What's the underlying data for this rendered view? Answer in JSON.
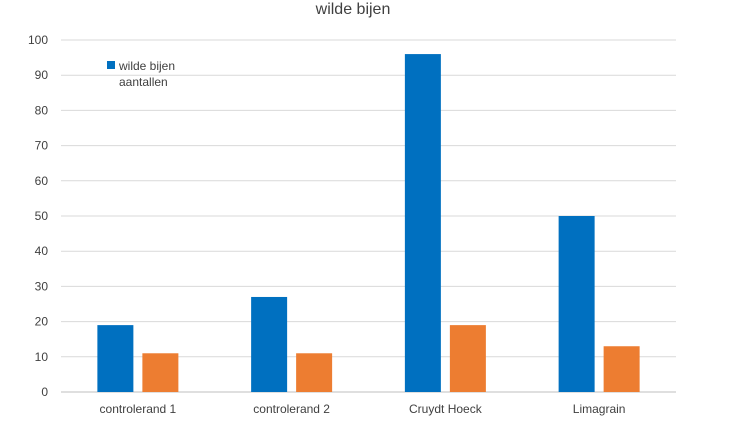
{
  "chart_data": {
    "type": "bar",
    "title": "wilde bijen",
    "categories": [
      "controlerand 1",
      "controlerand 2",
      "Cruydt Hoeck",
      "Limagrain"
    ],
    "series": [
      {
        "name": "wilde bijen aantallen",
        "values": [
          19,
          27,
          96,
          50
        ],
        "color": "#0070C0"
      },
      {
        "values": [
          11,
          11,
          19,
          13
        ],
        "color": "#ED7D31"
      }
    ],
    "yticks": [
      "0",
      "10",
      "20",
      "30",
      "40",
      "50",
      "60",
      "70",
      "80",
      "90",
      "100"
    ],
    "ylim": [
      0,
      100
    ],
    "grid": true,
    "legend_position": "top-left",
    "legend_lines": [
      "wilde bijen",
      "aantallen"
    ]
  }
}
